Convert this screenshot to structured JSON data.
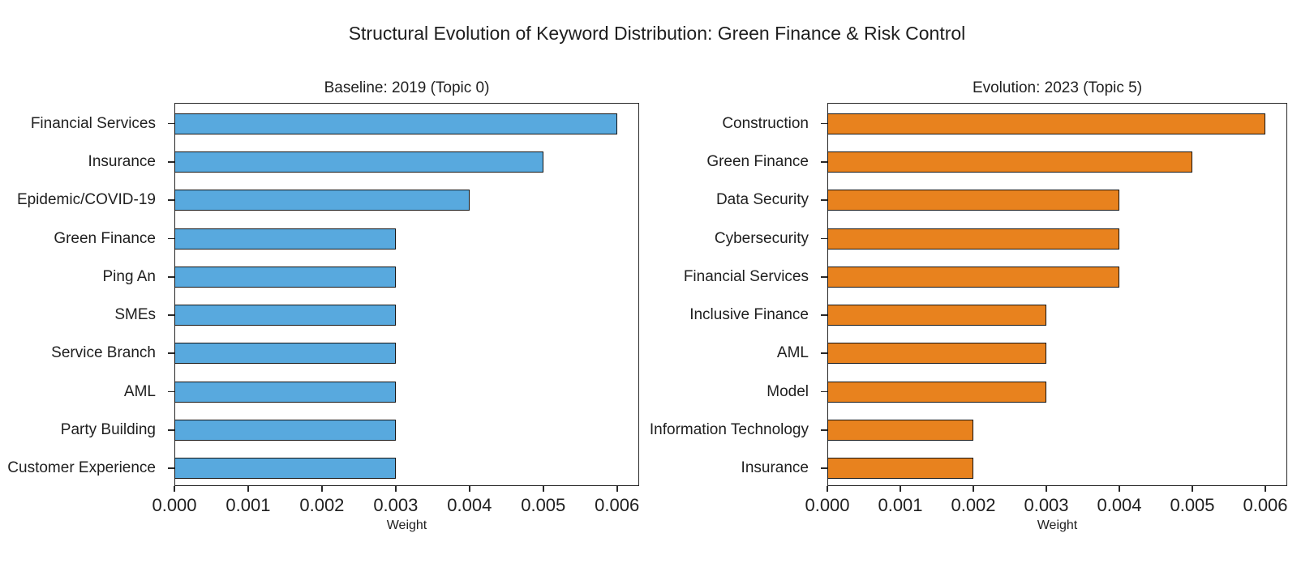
{
  "figure": {
    "title": "Structural Evolution of Keyword Distribution: Green Finance & Risk Control"
  },
  "chart_data": [
    {
      "type": "bar",
      "orientation": "horizontal",
      "title": "Baseline: 2019 (Topic 0)",
      "categories": [
        "Financial Services",
        "Insurance",
        "Epidemic/COVID-19",
        "Green Finance",
        "Ping An",
        "SMEs",
        "Service Branch",
        "AML",
        "Party Building",
        "Customer Experience"
      ],
      "values": [
        0.006,
        0.005,
        0.004,
        0.003,
        0.003,
        0.003,
        0.003,
        0.003,
        0.003,
        0.003
      ],
      "xlabel": "Weight",
      "xticks": [
        "0.000",
        "0.001",
        "0.002",
        "0.003",
        "0.004",
        "0.005",
        "0.006"
      ],
      "xtick_values": [
        0,
        0.001,
        0.002,
        0.003,
        0.004,
        0.005,
        0.006
      ],
      "xlim": [
        0,
        0.0063
      ],
      "bar_color": "#58A9DE",
      "bar_edge_color": "#141414",
      "grid": false,
      "legend": null
    },
    {
      "type": "bar",
      "orientation": "horizontal",
      "title": "Evolution: 2023 (Topic 5)",
      "categories": [
        "Construction",
        "Green Finance",
        "Data Security",
        "Cybersecurity",
        "Financial Services",
        "Inclusive Finance",
        "AML",
        "Model",
        "Information Technology",
        "Insurance"
      ],
      "values": [
        0.006,
        0.005,
        0.004,
        0.004,
        0.004,
        0.003,
        0.003,
        0.003,
        0.002,
        0.002
      ],
      "xlabel": "Weight",
      "xticks": [
        "0.000",
        "0.001",
        "0.002",
        "0.003",
        "0.004",
        "0.005",
        "0.006"
      ],
      "xtick_values": [
        0,
        0.001,
        0.002,
        0.003,
        0.004,
        0.005,
        0.006
      ],
      "xlim": [
        0,
        0.0063
      ],
      "bar_color": "#E8821E",
      "bar_edge_color": "#141414",
      "grid": false,
      "legend": null
    }
  ]
}
